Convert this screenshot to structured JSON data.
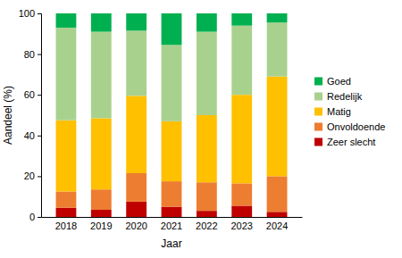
{
  "chart_data": {
    "type": "bar",
    "stacked": true,
    "legend": "right",
    "grid": false,
    "x_label": "Jaar",
    "y_label": "Aandeel (%)",
    "categories": [
      "2018",
      "2019",
      "2020",
      "2021",
      "2022",
      "2023",
      "2024"
    ],
    "ylim": [
      0,
      100
    ],
    "yticks": [
      0,
      20,
      40,
      60,
      80,
      100
    ],
    "series": [
      {
        "name": "Zeer slecht",
        "color": "#c00000",
        "values": [
          4.5,
          3.5,
          7.5,
          5,
          3,
          5.5,
          2.5
        ]
      },
      {
        "name": "Onvoldoende",
        "color": "#ed7d31",
        "values": [
          8,
          10,
          14,
          12.5,
          14,
          11,
          17.5
        ]
      },
      {
        "name": "Matig",
        "color": "#ffc000",
        "values": [
          35,
          35,
          38,
          29.5,
          33,
          43.5,
          49
        ]
      },
      {
        "name": "Redelijk",
        "color": "#a9d18e",
        "values": [
          45.5,
          42.5,
          32,
          37.5,
          41,
          34,
          26.5
        ]
      },
      {
        "name": "Goed",
        "color": "#00b050",
        "values": [
          7,
          9,
          8.5,
          15.5,
          9,
          6,
          4.5
        ]
      }
    ]
  }
}
